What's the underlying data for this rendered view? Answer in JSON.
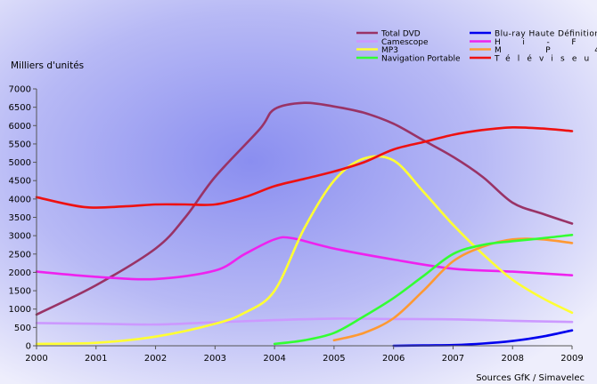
{
  "chart_data": {
    "type": "line",
    "ylabel": "Milliers d'unités",
    "source": "Sources GfK / Simavelec",
    "x": [
      2000,
      2001,
      2002,
      2003,
      2004,
      2005,
      2006,
      2007,
      2008,
      2009
    ],
    "x_ticks": [
      "2000",
      "2001",
      "2002",
      "2003",
      "2004",
      "2005",
      "2006",
      "2007",
      "2008",
      "2009"
    ],
    "y_ticks": [
      "0",
      "500",
      "1000",
      "1500",
      "2000",
      "2500",
      "3000",
      "3500",
      "4000",
      "4500",
      "5000",
      "5500",
      "6000",
      "6500",
      "7000"
    ],
    "ylim": [
      0,
      7000
    ],
    "xlim": [
      2000,
      2009
    ],
    "grid": false,
    "legend_position": "top-right",
    "series": [
      {
        "name": "Total DVD",
        "color": "#993366",
        "points": [
          [
            2000,
            850
          ],
          [
            2001,
            1650
          ],
          [
            2002,
            2650
          ],
          [
            2002.5,
            3500
          ],
          [
            2003,
            4600
          ],
          [
            2003.75,
            5900
          ],
          [
            2004,
            6450
          ],
          [
            2004.5,
            6620
          ],
          [
            2005,
            6520
          ],
          [
            2005.5,
            6350
          ],
          [
            2006,
            6050
          ],
          [
            2006.5,
            5600
          ],
          [
            2007,
            5150
          ],
          [
            2007.5,
            4600
          ],
          [
            2008,
            3900
          ],
          [
            2008.5,
            3600
          ],
          [
            2009,
            3330
          ]
        ]
      },
      {
        "name": "Blu-ray Haute Définition",
        "color": "#0000ee",
        "points": [
          [
            2006,
            0
          ],
          [
            2006.5,
            10
          ],
          [
            2007,
            20
          ],
          [
            2007.5,
            60
          ],
          [
            2008,
            130
          ],
          [
            2008.5,
            250
          ],
          [
            2009,
            420
          ]
        ]
      },
      {
        "name": "Camescope",
        "color": "#cc99ff",
        "points": [
          [
            2000,
            620
          ],
          [
            2001,
            600
          ],
          [
            2002,
            580
          ],
          [
            2003,
            640
          ],
          [
            2004,
            700
          ],
          [
            2005,
            740
          ],
          [
            2006,
            730
          ],
          [
            2007,
            720
          ],
          [
            2008,
            680
          ],
          [
            2009,
            650
          ]
        ]
      },
      {
        "name": "Hi-Fi",
        "color": "#ee22ee",
        "points": [
          [
            2000,
            2020
          ],
          [
            2001,
            1880
          ],
          [
            2002,
            1820
          ],
          [
            2003,
            2050
          ],
          [
            2003.5,
            2500
          ],
          [
            2004,
            2900
          ],
          [
            2004.3,
            2930
          ],
          [
            2005,
            2650
          ],
          [
            2006,
            2350
          ],
          [
            2007,
            2100
          ],
          [
            2008,
            2020
          ],
          [
            2009,
            1920
          ]
        ]
      },
      {
        "name": "MP3",
        "color": "#ffff33",
        "points": [
          [
            2000,
            50
          ],
          [
            2001,
            80
          ],
          [
            2002,
            250
          ],
          [
            2003,
            600
          ],
          [
            2003.5,
            900
          ],
          [
            2004,
            1500
          ],
          [
            2004.5,
            3200
          ],
          [
            2005,
            4500
          ],
          [
            2005.5,
            5100
          ],
          [
            2006,
            5050
          ],
          [
            2006.5,
            4200
          ],
          [
            2007,
            3300
          ],
          [
            2007.5,
            2500
          ],
          [
            2008,
            1800
          ],
          [
            2008.5,
            1300
          ],
          [
            2009,
            900
          ]
        ]
      },
      {
        "name": "MP4",
        "color": "#ff9933",
        "points": [
          [
            2005,
            150
          ],
          [
            2005.5,
            350
          ],
          [
            2006,
            750
          ],
          [
            2006.5,
            1500
          ],
          [
            2007,
            2300
          ],
          [
            2007.5,
            2700
          ],
          [
            2008,
            2900
          ],
          [
            2008.5,
            2900
          ],
          [
            2009,
            2800
          ]
        ]
      },
      {
        "name": "Navigation Portable",
        "color": "#33ff33",
        "points": [
          [
            2004,
            50
          ],
          [
            2004.5,
            150
          ],
          [
            2005,
            350
          ],
          [
            2005.5,
            800
          ],
          [
            2006,
            1300
          ],
          [
            2006.5,
            1900
          ],
          [
            2007,
            2500
          ],
          [
            2007.5,
            2750
          ],
          [
            2008,
            2850
          ],
          [
            2008.5,
            2930
          ],
          [
            2009,
            3020
          ]
        ]
      },
      {
        "name": "Téléviseur",
        "color": "#ee1111",
        "points": [
          [
            2000,
            4050
          ],
          [
            2000.8,
            3780
          ],
          [
            2001.5,
            3800
          ],
          [
            2002,
            3850
          ],
          [
            2002.5,
            3850
          ],
          [
            2003,
            3850
          ],
          [
            2003.5,
            4050
          ],
          [
            2004,
            4350
          ],
          [
            2004.5,
            4550
          ],
          [
            2005,
            4750
          ],
          [
            2005.5,
            5000
          ],
          [
            2006,
            5350
          ],
          [
            2006.5,
            5550
          ],
          [
            2007,
            5750
          ],
          [
            2007.5,
            5880
          ],
          [
            2008,
            5950
          ],
          [
            2008.5,
            5920
          ],
          [
            2009,
            5850
          ]
        ]
      }
    ]
  }
}
